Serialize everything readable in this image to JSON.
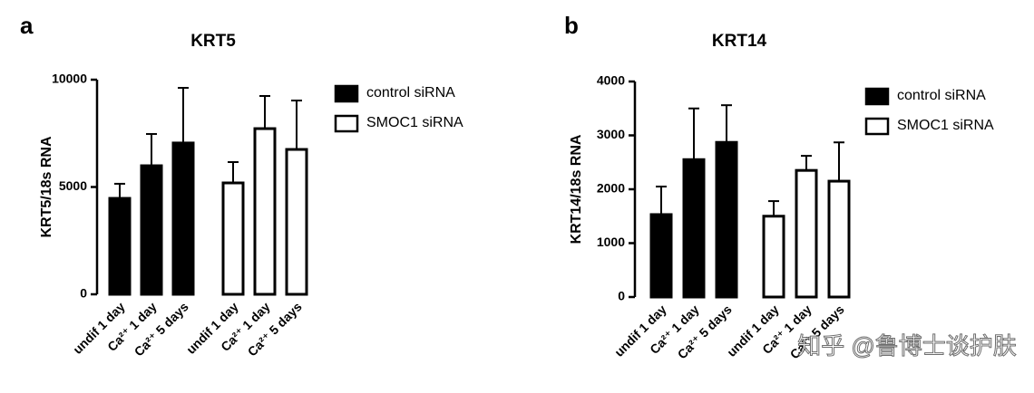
{
  "chart_data": [
    {
      "type": "bar",
      "label": "a",
      "title": "KRT5",
      "ylabel": "KRT5/18s RNA",
      "categories": [
        "undif 1 day",
        "Ca²⁺ 1 day",
        "Ca²⁺ 5 days"
      ],
      "series": [
        {
          "name": "control siRNA",
          "color": "#000000",
          "values": [
            4470,
            5990,
            7050
          ],
          "errors": [
            680,
            1480,
            2570
          ]
        },
        {
          "name": "SMOC1 siRNA",
          "color": "#ffffff",
          "values": [
            5190,
            7720,
            6750
          ],
          "errors": [
            970,
            1520,
            2280
          ]
        }
      ],
      "ylim": [
        0,
        10000
      ],
      "yticks": [
        0,
        5000,
        10000
      ]
    },
    {
      "type": "bar",
      "label": "b",
      "title": "KRT14",
      "ylabel": "KRT14/18s RNA",
      "categories": [
        "undif 1 day",
        "Ca²⁺ 1 day",
        "Ca²⁺ 5 days"
      ],
      "series": [
        {
          "name": "control siRNA",
          "color": "#000000",
          "values": [
            1530,
            2550,
            2870
          ],
          "errors": [
            520,
            950,
            690
          ]
        },
        {
          "name": "SMOC1 siRNA",
          "color": "#ffffff",
          "values": [
            1500,
            2350,
            2150
          ],
          "errors": [
            280,
            270,
            720
          ]
        }
      ],
      "ylim": [
        0,
        4000
      ],
      "yticks": [
        0,
        1000,
        2000,
        3000,
        4000
      ]
    }
  ],
  "watermark": "知乎 @鲁博士谈护肤"
}
